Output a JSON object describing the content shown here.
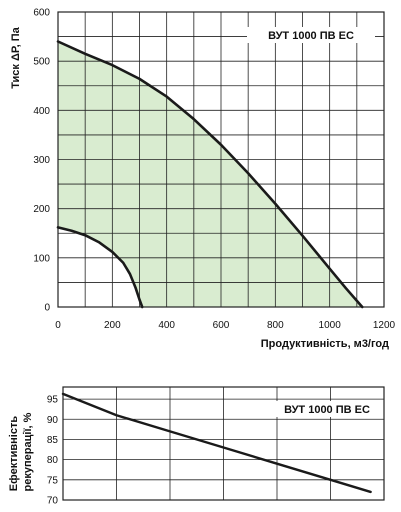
{
  "colors": {
    "fill": "#d9ecd0",
    "curve": "#1a1a1a",
    "grid": "#222222"
  },
  "chart_data": [
    {
      "type": "area",
      "legend": "ВУТ 1000 ПВ ЕС",
      "legend_position": "top-right",
      "xlabel": "Продуктивність, м3/год",
      "ylabel": "Тиск ΔР, Па",
      "xlim": [
        0,
        1200
      ],
      "ylim": [
        0,
        600
      ],
      "xticks": [
        0,
        200,
        400,
        600,
        800,
        1000,
        1200
      ],
      "yticks": [
        0,
        100,
        200,
        300,
        400,
        500,
        600
      ],
      "grid": true,
      "series": [
        {
          "role": "max",
          "x": [
            0,
            100,
            200,
            300,
            400,
            500,
            600,
            700,
            800,
            900,
            1000,
            1060,
            1120
          ],
          "y": [
            540,
            515,
            492,
            464,
            428,
            382,
            330,
            272,
            210,
            145,
            78,
            38,
            0
          ]
        },
        {
          "role": "min",
          "x": [
            0,
            50,
            100,
            150,
            200,
            240,
            265,
            285,
            300,
            310
          ],
          "y": [
            162,
            155,
            146,
            132,
            112,
            90,
            67,
            40,
            15,
            0
          ]
        }
      ]
    },
    {
      "type": "line",
      "legend": "ВУТ 1000 ПВ ЕС",
      "legend_position": "top-right",
      "xlabel": "",
      "ylabel": "Ефективність рекуперації, %",
      "xlim": [
        0,
        1200
      ],
      "ylim": [
        70,
        98
      ],
      "yticks": [
        70,
        75,
        80,
        85,
        90,
        95
      ],
      "grid": true,
      "series": [
        {
          "x": [
            0,
            200,
            400,
            600,
            800,
            1000,
            1150
          ],
          "y": [
            96.3,
            91,
            87,
            83,
            79,
            75,
            72
          ]
        }
      ]
    }
  ]
}
